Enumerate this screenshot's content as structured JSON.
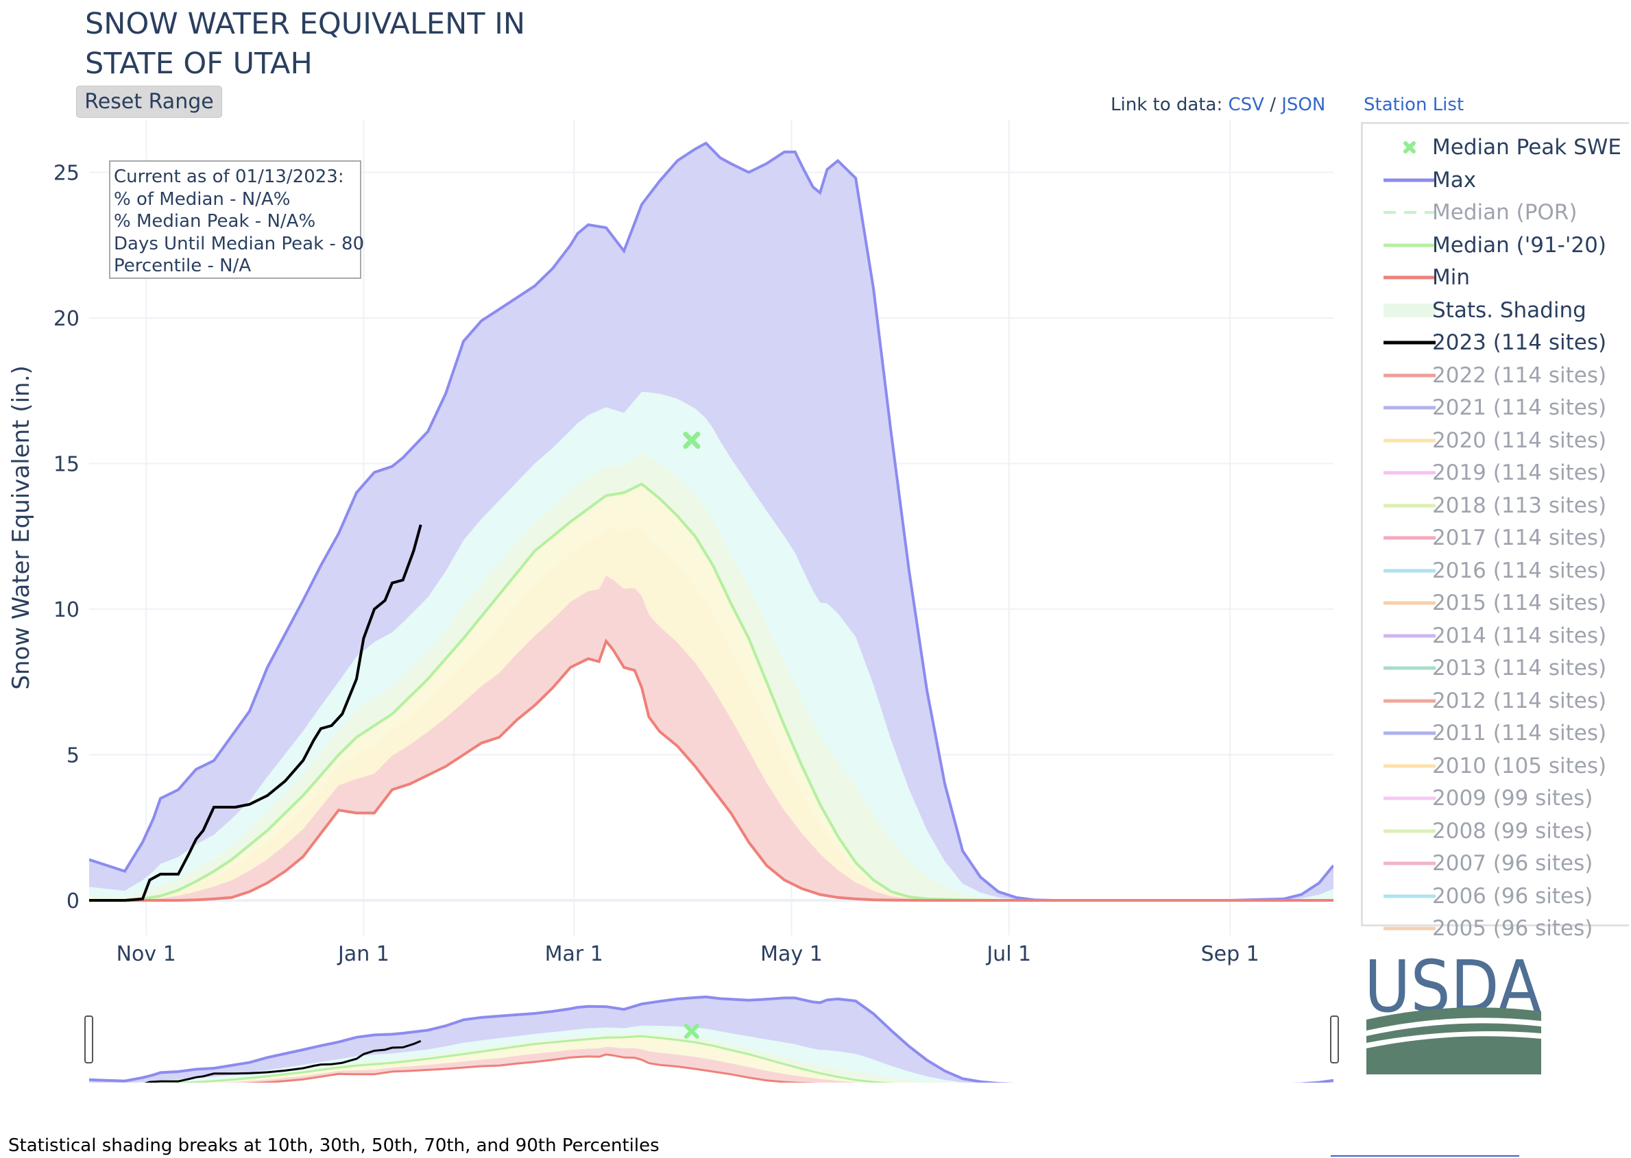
{
  "header": {
    "title_line1": "SNOW WATER EQUIVALENT IN",
    "title_line2": "STATE OF UTAH",
    "reset_label": "Reset Range",
    "link_prefix": "Link to data:",
    "csv_label": "CSV",
    "sep": "/",
    "json_label": "JSON",
    "station_label": "Station List"
  },
  "info_box": {
    "line1": "Current as of 01/13/2023:",
    "line2": "% of Median - N/A%",
    "line3": "% Median Peak - N/A%",
    "line4": "Days Until Median Peak - 80",
    "line5": "Percentile - N/A"
  },
  "footer": {
    "note": "Statistical shading breaks at 10th, 30th, 50th, 70th, and 90th Percentiles"
  },
  "logo": {
    "text": "USDA",
    "text_color": "#4f6f94",
    "field_color": "#5b7f6d"
  },
  "legend": [
    {
      "label": "Median Peak SWE",
      "symbol": "x",
      "color": "#90ee90",
      "active": true
    },
    {
      "label": "Max",
      "symbol": "line",
      "color": "#8b8bf0",
      "active": true
    },
    {
      "label": "Median (POR)",
      "symbol": "dash",
      "color": "#c6f2c6",
      "active": false
    },
    {
      "label": "Median ('91-'20)",
      "symbol": "line",
      "color": "#b4f0a0",
      "active": true
    },
    {
      "label": "Min",
      "symbol": "line",
      "color": "#ee8079",
      "active": true
    },
    {
      "label": "Stats. Shading",
      "symbol": "box",
      "color": "#e8f8e8",
      "active": true
    },
    {
      "label": "2023 (114 sites)",
      "symbol": "line",
      "color": "#000000",
      "active": true
    },
    {
      "label": "2022 (114 sites)",
      "symbol": "line",
      "color": "#ee9e99",
      "active": false
    },
    {
      "label": "2021 (114 sites)",
      "symbol": "line",
      "color": "#b2b2ec",
      "active": false
    },
    {
      "label": "2020 (114 sites)",
      "symbol": "line",
      "color": "#fbe5a8",
      "active": false
    },
    {
      "label": "2019 (114 sites)",
      "symbol": "line",
      "color": "#f6c3f0",
      "active": false
    },
    {
      "label": "2018 (113 sites)",
      "symbol": "line",
      "color": "#dcefb4",
      "active": false
    },
    {
      "label": "2017 (114 sites)",
      "symbol": "line",
      "color": "#f4a8bc",
      "active": false
    },
    {
      "label": "2016 (114 sites)",
      "symbol": "line",
      "color": "#ade2ef",
      "active": false
    },
    {
      "label": "2015 (114 sites)",
      "symbol": "line",
      "color": "#f7cfa8",
      "active": false
    },
    {
      "label": "2014 (114 sites)",
      "symbol": "line",
      "color": "#cdb4f2",
      "active": false
    },
    {
      "label": "2013 (114 sites)",
      "symbol": "line",
      "color": "#a8dcc6",
      "active": false
    },
    {
      "label": "2012 (114 sites)",
      "symbol": "line",
      "color": "#f0a79c",
      "active": false
    },
    {
      "label": "2011 (114 sites)",
      "symbol": "line",
      "color": "#aeb1ec",
      "active": false
    },
    {
      "label": "2010 (105 sites)",
      "symbol": "line",
      "color": "#fde0a8",
      "active": false
    },
    {
      "label": "2009 (99 sites)",
      "symbol": "line",
      "color": "#f8c8f4",
      "active": false
    },
    {
      "label": "2008 (99 sites)",
      "symbol": "line",
      "color": "#dcefb4",
      "active": false
    },
    {
      "label": "2007 (96 sites)",
      "symbol": "line",
      "color": "#f4b4c8",
      "active": false
    },
    {
      "label": "2006 (96 sites)",
      "symbol": "line",
      "color": "#aee4f0",
      "active": false
    },
    {
      "label": "2005 (96 sites)",
      "symbol": "line",
      "color": "#f7d0b0",
      "active": false
    }
  ],
  "chart_data": {
    "type": "area",
    "title": "SNOW WATER EQUIVALENT IN STATE OF UTAH",
    "ylabel": "Snow Water Equivalent (in.)",
    "xlabel": "",
    "x_units": "day of water year (Oct 1 = 0)",
    "xlim": [
      15,
      364
    ],
    "ylim": [
      -1.2,
      26.8
    ],
    "y_ticks": [
      0,
      5,
      10,
      15,
      20,
      25
    ],
    "x_ticks": [
      {
        "day": 31,
        "label": "Nov  1"
      },
      {
        "day": 92,
        "label": "Jan  1"
      },
      {
        "day": 151,
        "label": "Mar  1"
      },
      {
        "day": 212,
        "label": "May  1"
      },
      {
        "day": 273,
        "label": "Jul  1"
      },
      {
        "day": 335,
        "label": "Sep  1"
      }
    ],
    "grid": true,
    "legend_position": "right",
    "colors": {
      "max": "#8b8bf0",
      "median": "#b4f0a0",
      "min": "#ee8079",
      "current": "#000000",
      "peak": "#90ee90"
    },
    "series": [
      {
        "name": "Max",
        "x": [
          15,
          20,
          25,
          30,
          33,
          35,
          40,
          45,
          50,
          60,
          65,
          75,
          80,
          85,
          90,
          95,
          100,
          103,
          110,
          115,
          120,
          125,
          130,
          135,
          140,
          145,
          150,
          152,
          155,
          160,
          165,
          170,
          175,
          180,
          185,
          188,
          192,
          195,
          200,
          205,
          210,
          213,
          215,
          218,
          220,
          222,
          225,
          230,
          235,
          240,
          245,
          250,
          255,
          260,
          265,
          270,
          275,
          280,
          285,
          290,
          300,
          320,
          335,
          350,
          355,
          360,
          364
        ],
        "y": [
          1.4,
          1.2,
          1.0,
          2.0,
          2.8,
          3.5,
          3.8,
          4.5,
          4.8,
          6.5,
          8,
          10.3,
          11.5,
          12.6,
          14,
          14.7,
          14.9,
          15.2,
          16.1,
          17.4,
          19.2,
          19.9,
          20.3,
          20.7,
          21.1,
          21.7,
          22.5,
          22.9,
          23.2,
          23.1,
          22.3,
          23.9,
          24.7,
          25.4,
          25.8,
          26.0,
          25.5,
          25.3,
          25.0,
          25.3,
          25.7,
          25.7,
          25.2,
          24.5,
          24.3,
          25.1,
          25.4,
          24.8,
          21,
          16,
          11.3,
          7.2,
          4.0,
          1.7,
          0.8,
          0.3,
          0.1,
          0.02,
          0.0,
          0.0,
          0.0,
          0.0,
          0.0,
          0.05,
          0.2,
          0.6,
          1.2
        ]
      },
      {
        "name": "Median ('91-'20)",
        "x": [
          15,
          25,
          30,
          35,
          40,
          45,
          50,
          55,
          60,
          65,
          70,
          75,
          80,
          85,
          90,
          95,
          100,
          105,
          110,
          120,
          130,
          140,
          150,
          160,
          165,
          170,
          175,
          180,
          185,
          190,
          195,
          200,
          205,
          210,
          215,
          220,
          225,
          230,
          235,
          240,
          245,
          250,
          260,
          270,
          280,
          290,
          300,
          364
        ],
        "y": [
          0,
          0,
          0.05,
          0.15,
          0.35,
          0.65,
          1.0,
          1.4,
          1.9,
          2.4,
          3.0,
          3.6,
          4.3,
          5.0,
          5.6,
          6.0,
          6.4,
          7.0,
          7.6,
          9.0,
          10.5,
          12.0,
          13.0,
          13.9,
          14.0,
          14.3,
          13.8,
          13.2,
          12.5,
          11.5,
          10.2,
          9.0,
          7.5,
          6.0,
          4.6,
          3.3,
          2.2,
          1.3,
          0.7,
          0.3,
          0.12,
          0.05,
          0.02,
          0,
          0,
          0,
          0,
          0
        ]
      },
      {
        "name": "Min",
        "x": [
          15,
          30,
          40,
          45,
          50,
          55,
          60,
          65,
          70,
          75,
          80,
          85,
          90,
          95,
          100,
          105,
          110,
          115,
          120,
          125,
          130,
          135,
          140,
          145,
          150,
          155,
          158,
          160,
          162,
          165,
          168,
          170,
          172,
          175,
          180,
          185,
          190,
          195,
          200,
          205,
          210,
          215,
          220,
          225,
          230,
          235,
          240,
          250,
          260,
          364
        ],
        "y": [
          0,
          0,
          0,
          0.02,
          0.05,
          0.1,
          0.3,
          0.6,
          1.0,
          1.5,
          2.3,
          3.1,
          3.0,
          3.0,
          3.8,
          4.0,
          4.3,
          4.6,
          5.0,
          5.4,
          5.6,
          6.2,
          6.7,
          7.3,
          8.0,
          8.3,
          8.2,
          8.9,
          8.6,
          8.0,
          7.9,
          7.3,
          6.3,
          5.8,
          5.3,
          4.6,
          3.8,
          3.0,
          2.0,
          1.2,
          0.7,
          0.4,
          0.2,
          0.1,
          0.05,
          0.02,
          0.01,
          0,
          0,
          0
        ]
      },
      {
        "name": "2023 (114 sites)",
        "x": [
          15,
          25,
          30,
          32,
          35,
          40,
          43,
          45,
          47,
          50,
          53,
          56,
          60,
          65,
          70,
          75,
          78,
          80,
          83,
          86,
          90,
          92,
          95,
          98,
          100,
          103,
          106,
          108
        ],
        "y": [
          0,
          0,
          0.05,
          0.7,
          0.9,
          0.9,
          1.6,
          2.1,
          2.4,
          3.2,
          3.2,
          3.2,
          3.3,
          3.6,
          4.1,
          4.8,
          5.5,
          5.9,
          6.0,
          6.4,
          7.6,
          9.0,
          10.0,
          10.3,
          10.9,
          11.0,
          12.0,
          12.9
        ]
      },
      {
        "name": "Median Peak SWE",
        "x": [
          184
        ],
        "y": [
          15.8
        ]
      }
    ],
    "shading_percentiles": [
      10,
      30,
      50,
      70,
      90
    ]
  }
}
